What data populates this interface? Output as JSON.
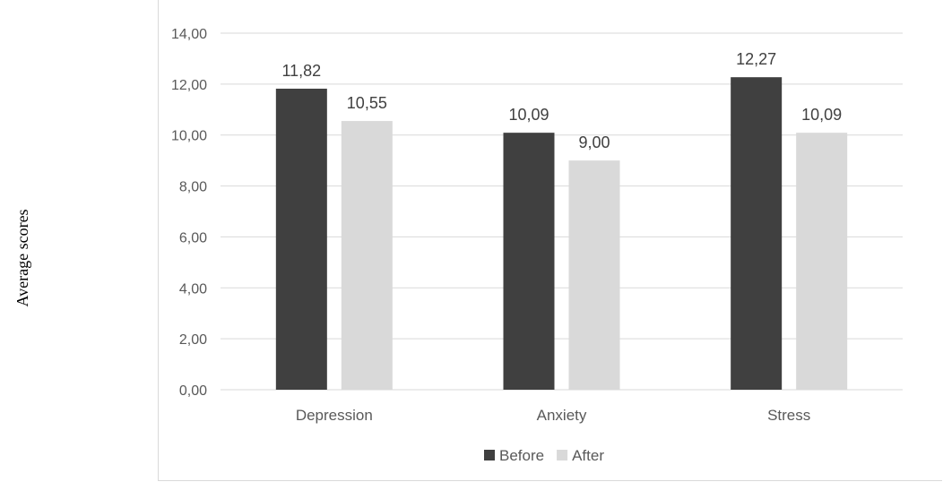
{
  "chart_data": {
    "type": "bar",
    "title": "",
    "xlabel": "",
    "ylabel": "Average scores",
    "categories": [
      "Depression",
      "Anxiety",
      "Stress"
    ],
    "series": [
      {
        "name": "Before",
        "values": [
          11.82,
          10.09,
          12.27
        ],
        "labels": [
          "11,82",
          "10,09",
          "12,27"
        ],
        "color": "#404040"
      },
      {
        "name": "After",
        "values": [
          10.55,
          9.0,
          10.09
        ],
        "labels": [
          "10,55",
          "9,00",
          "10,09"
        ],
        "color": "#d9d9d9"
      }
    ],
    "ylim": [
      0,
      14
    ],
    "yticks": [
      0,
      2,
      4,
      6,
      8,
      10,
      12,
      14
    ],
    "ytick_labels": [
      "0,00",
      "2,00",
      "4,00",
      "6,00",
      "8,00",
      "10,00",
      "12,00",
      "14,00"
    ],
    "grid": true,
    "gridline_color": "#d9d9d9",
    "legend_position": "bottom"
  }
}
